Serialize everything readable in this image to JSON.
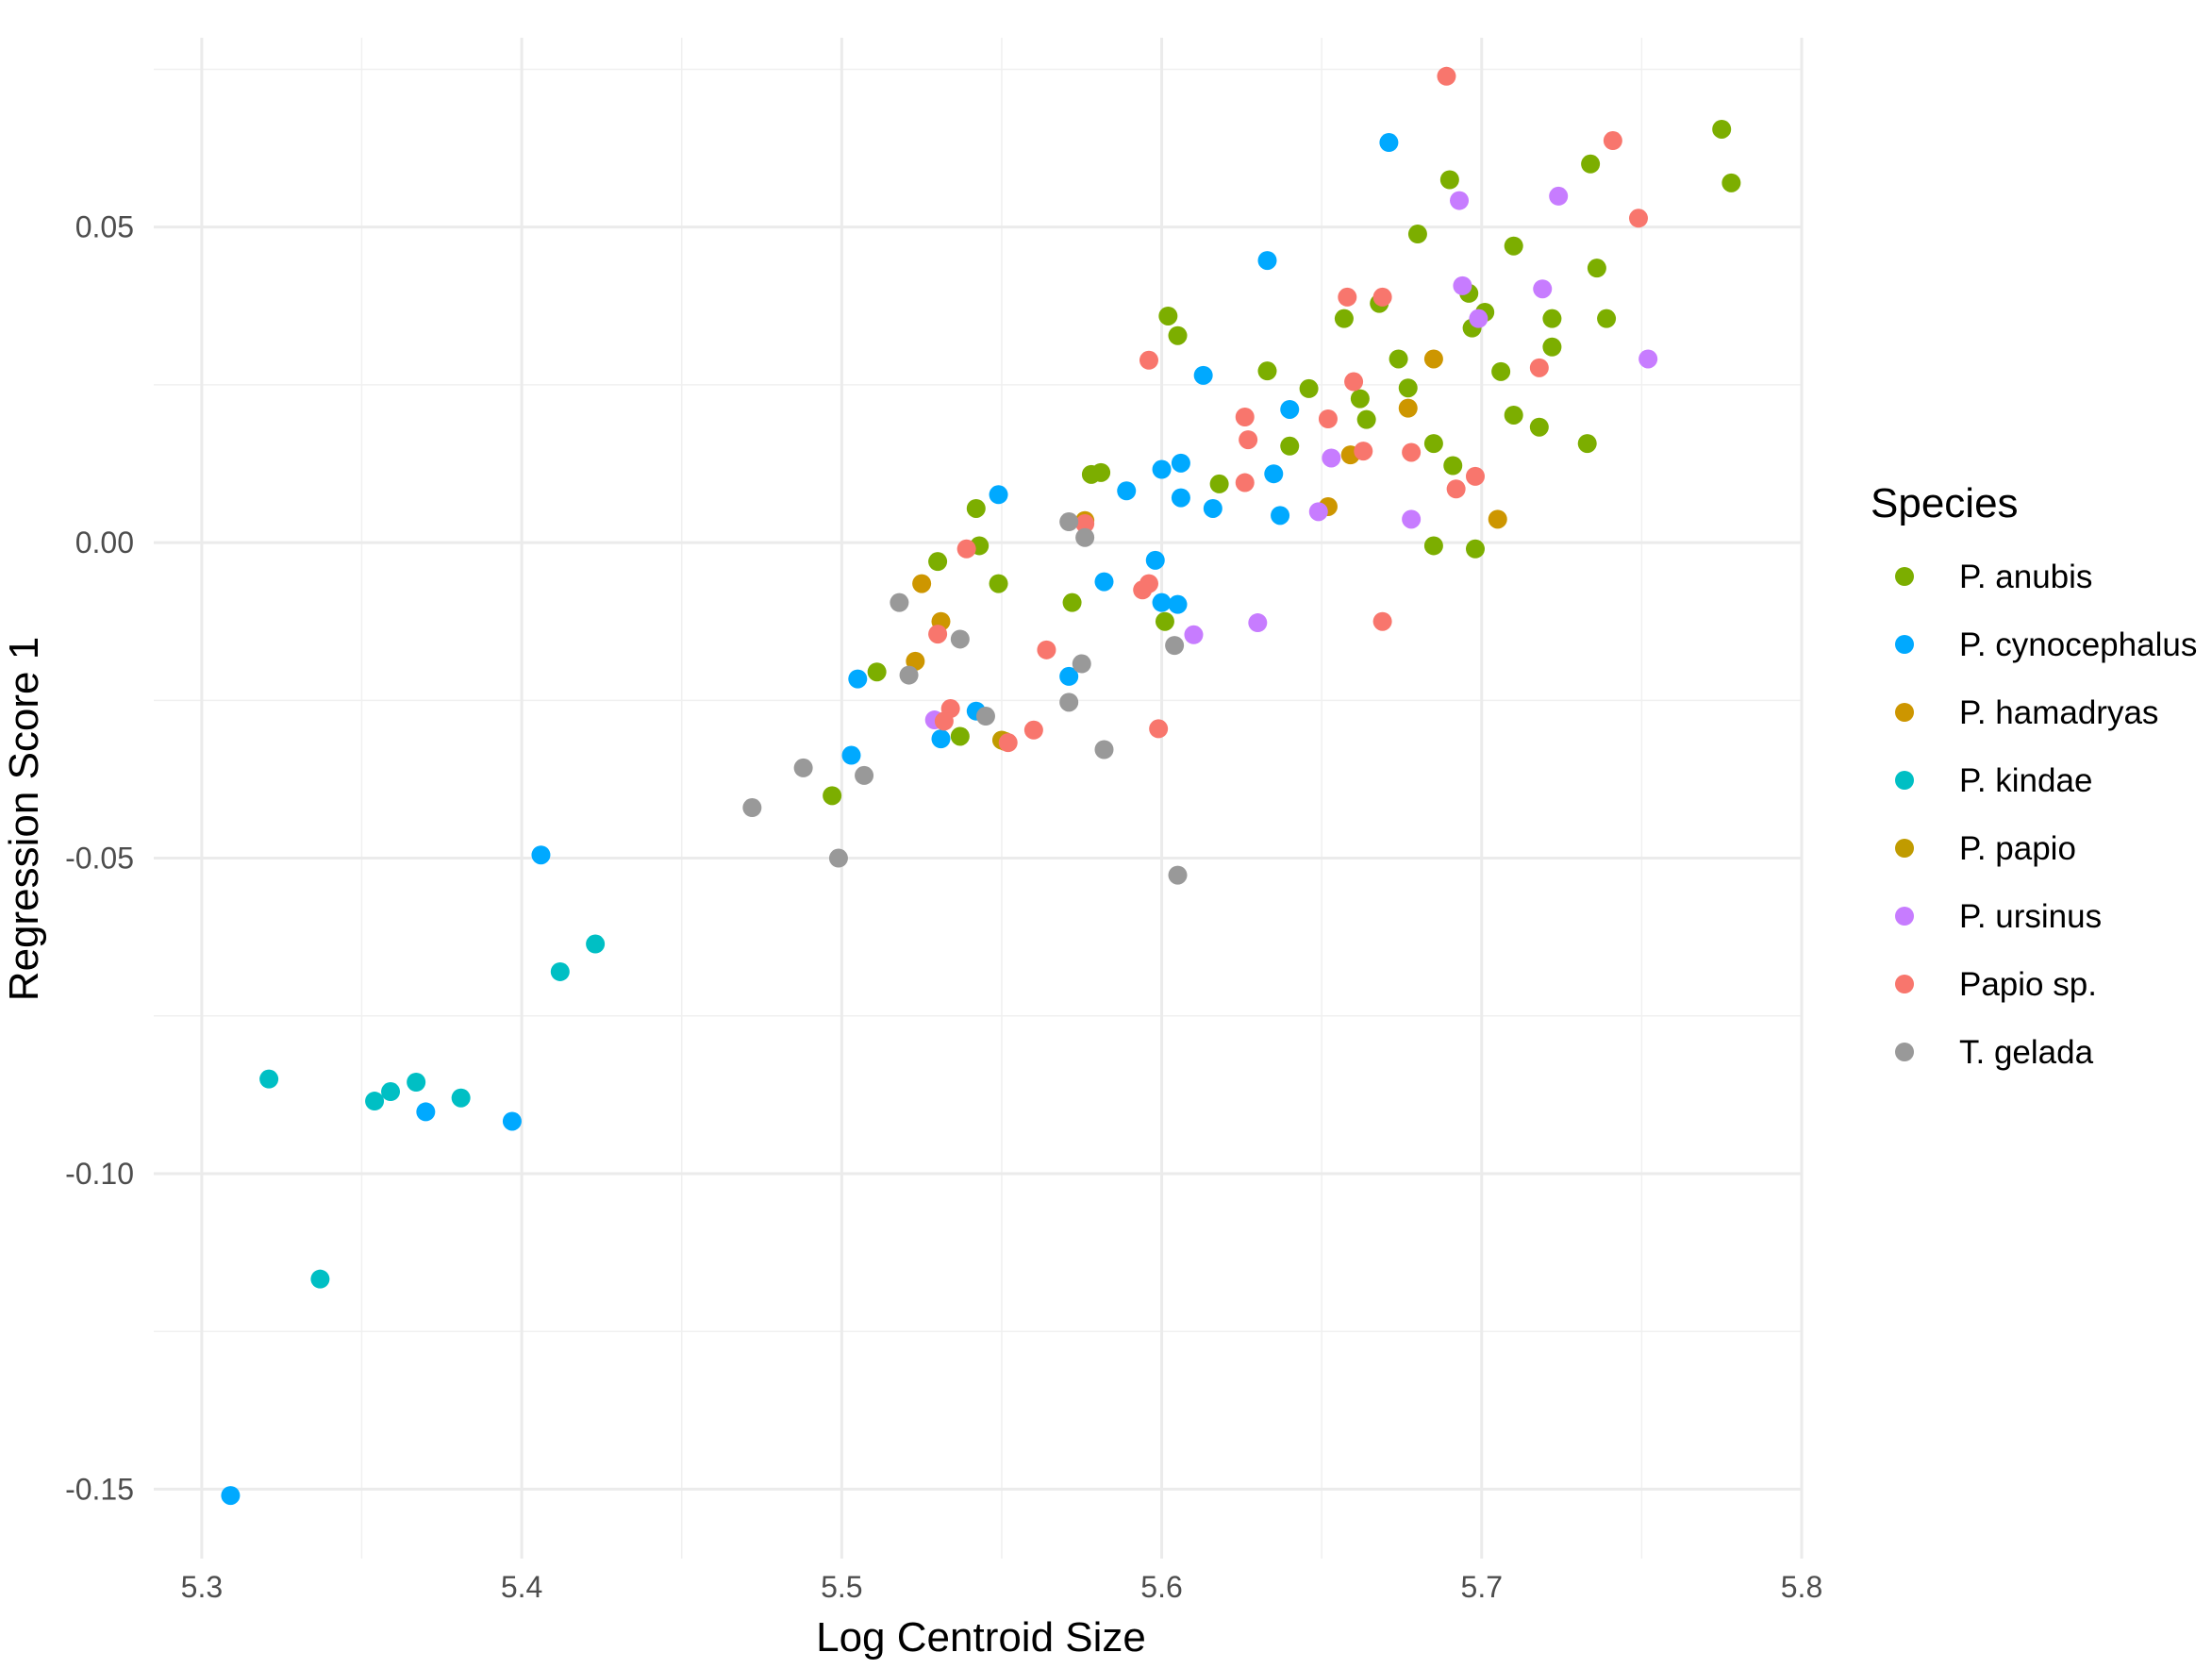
{
  "chart_data": {
    "type": "scatter",
    "xlabel": "Log Centroid Size",
    "ylabel": "Regression Score 1",
    "xlim": [
      5.285,
      5.8
    ],
    "ylim": [
      -0.161,
      0.08
    ],
    "x_ticks": [
      5.3,
      5.4,
      5.5,
      5.6,
      5.7,
      5.8
    ],
    "x_tick_labels": [
      "5.3",
      "5.4",
      "5.5",
      "5.6",
      "5.7",
      "5.8"
    ],
    "y_ticks": [
      -0.15,
      -0.1,
      -0.05,
      0.0,
      0.05
    ],
    "y_tick_labels": [
      "-0.15",
      "-0.10",
      "-0.05",
      "0.00",
      "0.05"
    ],
    "grid": true,
    "legend": {
      "title": "Species",
      "position": "right"
    },
    "series": [
      {
        "name": "P. anubis",
        "color": "#7CAE00",
        "points": [
          [
            5.775,
            0.0655
          ],
          [
            5.778,
            0.057
          ],
          [
            5.734,
            0.06
          ],
          [
            5.736,
            0.0435
          ],
          [
            5.739,
            0.0355
          ],
          [
            5.722,
            0.0355
          ],
          [
            5.722,
            0.031
          ],
          [
            5.733,
            0.0157
          ],
          [
            5.718,
            0.0183
          ],
          [
            5.71,
            0.047
          ],
          [
            5.71,
            0.0202
          ],
          [
            5.706,
            0.0271
          ],
          [
            5.701,
            0.0365
          ],
          [
            5.697,
            0.034
          ],
          [
            5.696,
            0.0395
          ],
          [
            5.698,
            -0.001
          ],
          [
            5.69,
            0.0575
          ],
          [
            5.691,
            0.0122
          ],
          [
            5.685,
            0.0157
          ],
          [
            5.685,
            -0.0005
          ],
          [
            5.68,
            0.0489
          ],
          [
            5.677,
            0.0245
          ],
          [
            5.674,
            0.0291
          ],
          [
            5.668,
            0.0379
          ],
          [
            5.664,
            0.0195
          ],
          [
            5.662,
            0.0228
          ],
          [
            5.657,
            0.0355
          ],
          [
            5.646,
            0.0244
          ],
          [
            5.64,
            0.0153
          ],
          [
            5.633,
            0.0272
          ],
          [
            5.618,
            0.0093
          ],
          [
            5.605,
            0.0328
          ],
          [
            5.602,
            0.0359
          ],
          [
            5.601,
            -0.0125
          ],
          [
            5.581,
            0.0111
          ],
          [
            5.578,
            0.0108
          ],
          [
            5.572,
            -0.0095
          ],
          [
            5.549,
            -0.0065
          ],
          [
            5.542,
            0.0054
          ],
          [
            5.543,
            -0.0005
          ],
          [
            5.53,
            -0.003
          ],
          [
            5.537,
            -0.0307
          ],
          [
            5.511,
            -0.0205
          ],
          [
            5.497,
            -0.0401
          ]
        ]
      },
      {
        "name": "P. cynocephalus",
        "color": "#00A9FF",
        "points": [
          [
            5.671,
            0.0634
          ],
          [
            5.633,
            0.0447
          ],
          [
            5.613,
            0.0265
          ],
          [
            5.64,
            0.0211
          ],
          [
            5.635,
            0.0109
          ],
          [
            5.637,
            0.0043
          ],
          [
            5.616,
            0.0054
          ],
          [
            5.606,
            0.0126
          ],
          [
            5.6,
            0.0116
          ],
          [
            5.606,
            0.0071
          ],
          [
            5.589,
            0.0082
          ],
          [
            5.549,
            0.0076
          ],
          [
            5.598,
            -0.0028
          ],
          [
            5.6,
            -0.0095
          ],
          [
            5.605,
            -0.0098
          ],
          [
            5.582,
            -0.0062
          ],
          [
            5.571,
            -0.0212
          ],
          [
            5.542,
            -0.0267
          ],
          [
            5.531,
            -0.0311
          ],
          [
            5.505,
            -0.0216
          ],
          [
            5.503,
            -0.0337
          ],
          [
            5.406,
            -0.0495
          ],
          [
            5.37,
            -0.0902
          ],
          [
            5.397,
            -0.0917
          ],
          [
            5.309,
            -0.151
          ]
        ]
      },
      {
        "name": "P. hamadryas",
        "color": "#CD9600",
        "points": [
          [
            5.685,
            0.0291
          ],
          [
            5.677,
            0.0213
          ],
          [
            5.659,
            0.0139
          ],
          [
            5.652,
            0.0057
          ],
          [
            5.705,
            0.0037
          ],
          [
            5.576,
            0.0035
          ],
          [
            5.525,
            -0.0065
          ],
          [
            5.531,
            -0.0125
          ],
          [
            5.523,
            -0.0188
          ],
          [
            5.551,
            -0.0315
          ]
        ]
      },
      {
        "name": "P. kindae",
        "color": "#00BFC4",
        "points": [
          [
            5.423,
            -0.0636
          ],
          [
            5.412,
            -0.068
          ],
          [
            5.321,
            -0.085
          ],
          [
            5.367,
            -0.0855
          ],
          [
            5.359,
            -0.087
          ],
          [
            5.354,
            -0.0885
          ],
          [
            5.381,
            -0.088
          ],
          [
            5.337,
            -0.1167
          ]
        ]
      },
      {
        "name": "P. papio",
        "color": "#C09B00",
        "points": [
          [
            5.55,
            -0.0313
          ]
        ]
      },
      {
        "name": "P. ursinus",
        "color": "#C77CFF",
        "points": [
          [
            5.724,
            0.0549
          ],
          [
            5.693,
            0.0542
          ],
          [
            5.719,
            0.0402
          ],
          [
            5.694,
            0.0407
          ],
          [
            5.699,
            0.0355
          ],
          [
            5.752,
            0.0291
          ],
          [
            5.653,
            0.0134
          ],
          [
            5.649,
            0.0049
          ],
          [
            5.678,
            0.0037
          ],
          [
            5.63,
            -0.0127
          ],
          [
            5.61,
            -0.0146
          ],
          [
            5.529,
            -0.0281
          ]
        ]
      },
      {
        "name": "Papio sp.",
        "color": "#F8766D",
        "points": [
          [
            5.689,
            0.0739
          ],
          [
            5.741,
            0.0637
          ],
          [
            5.749,
            0.0514
          ],
          [
            5.658,
            0.0389
          ],
          [
            5.669,
            0.0389
          ],
          [
            5.596,
            0.0289
          ],
          [
            5.718,
            0.0277
          ],
          [
            5.66,
            0.0255
          ],
          [
            5.626,
            0.0199
          ],
          [
            5.652,
            0.0196
          ],
          [
            5.627,
            0.0163
          ],
          [
            5.663,
            0.0145
          ],
          [
            5.678,
            0.0143
          ],
          [
            5.698,
            0.0105
          ],
          [
            5.626,
            0.0095
          ],
          [
            5.692,
            0.0085
          ],
          [
            5.576,
            0.003
          ],
          [
            5.539,
            -0.001
          ],
          [
            5.596,
            -0.0065
          ],
          [
            5.594,
            -0.0075
          ],
          [
            5.669,
            -0.0125
          ],
          [
            5.53,
            -0.0145
          ],
          [
            5.564,
            -0.017
          ],
          [
            5.534,
            -0.0263
          ],
          [
            5.532,
            -0.0283
          ],
          [
            5.56,
            -0.0297
          ],
          [
            5.599,
            -0.0295
          ],
          [
            5.552,
            -0.0317
          ]
        ]
      },
      {
        "name": "T. gelada",
        "color": "#999999",
        "points": [
          [
            5.571,
            0.0033
          ],
          [
            5.576,
            0.0008
          ],
          [
            5.518,
            -0.0095
          ],
          [
            5.537,
            -0.0153
          ],
          [
            5.604,
            -0.0163
          ],
          [
            5.575,
            -0.0192
          ],
          [
            5.521,
            -0.021
          ],
          [
            5.571,
            -0.0253
          ],
          [
            5.545,
            -0.0275
          ],
          [
            5.582,
            -0.0328
          ],
          [
            5.488,
            -0.0357
          ],
          [
            5.507,
            -0.0369
          ],
          [
            5.472,
            -0.042
          ],
          [
            5.499,
            -0.05
          ],
          [
            5.605,
            -0.0527
          ]
        ]
      }
    ]
  }
}
